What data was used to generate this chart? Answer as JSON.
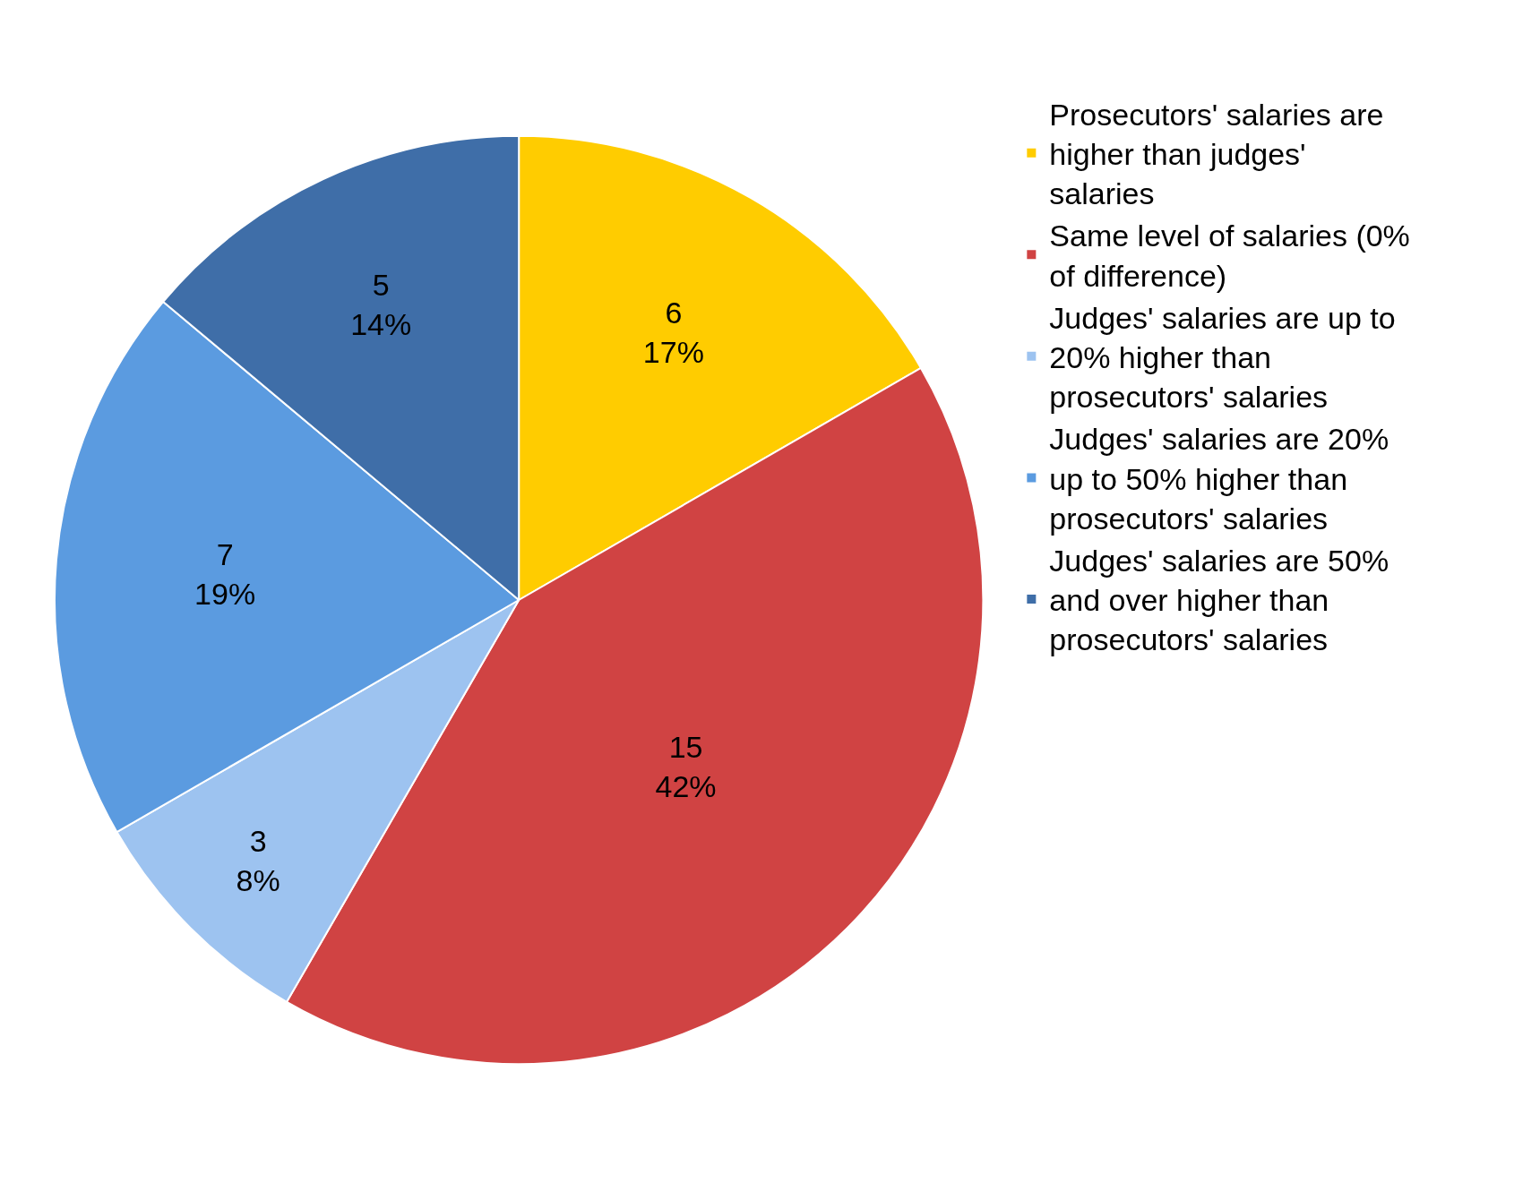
{
  "chart_data": {
    "type": "pie",
    "categories": [
      "Prosecutors' salaries are higher than judges' salaries",
      "Same level of salaries (0% of difference)",
      "Judges' salaries are up to 20% higher than prosecutors' salaries",
      "Judges' salaries are 20% up to 50% higher than prosecutors' salaries",
      "Judges' salaries are 50% and over higher than prosecutors' salaries"
    ],
    "values": [
      6,
      15,
      3,
      7,
      5
    ],
    "value_labels": [
      "6\n17%",
      "15\n42%",
      "3\n8%",
      "7\n19%",
      "5\n14%"
    ],
    "colors": [
      "#ffcc00",
      "#d04343",
      "#9dc3f0",
      "#5b9be0",
      "#3f6ea8"
    ],
    "legend": "right"
  }
}
